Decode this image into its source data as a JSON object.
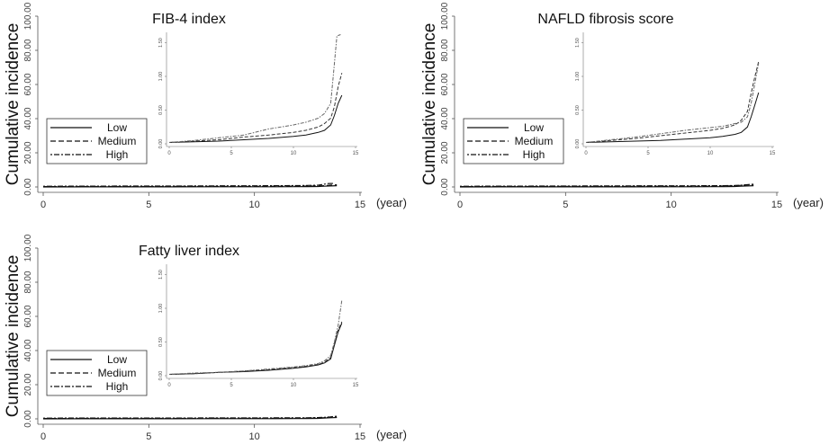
{
  "chart_data": [
    {
      "type": "line",
      "title": "FIB-4 index",
      "ylabel": "Cumulative incidence",
      "xunit": "(year)",
      "xlim": [
        0,
        15
      ],
      "ylim": [
        0,
        100
      ],
      "xticks": [
        "0",
        "5",
        "10",
        "15"
      ],
      "yticks": [
        "0.00",
        "20.00",
        "40.00",
        "60.00",
        "80.00",
        "100.00"
      ],
      "legend": [
        "Low",
        "Medium",
        "High"
      ],
      "legend_position": "lower-left",
      "series": [
        {
          "name": "Low",
          "dash": "solid",
          "x": [
            0,
            2,
            4,
            6,
            8,
            10,
            11,
            12,
            12.5,
            13,
            13.3,
            13.6,
            13.9
          ],
          "y": [
            0.02,
            0.03,
            0.04,
            0.06,
            0.08,
            0.11,
            0.13,
            0.17,
            0.2,
            0.28,
            0.42,
            0.6,
            0.72
          ]
        },
        {
          "name": "Medium",
          "dash": "dashed",
          "x": [
            0,
            2,
            4,
            6,
            8,
            10,
            11,
            12,
            12.5,
            13,
            13.3,
            13.6,
            13.9
          ],
          "y": [
            0.02,
            0.04,
            0.06,
            0.1,
            0.13,
            0.17,
            0.2,
            0.25,
            0.3,
            0.38,
            0.55,
            0.85,
            1.05
          ]
        },
        {
          "name": "High",
          "dash": "dash-dot",
          "x": [
            0,
            2,
            4,
            6,
            8,
            10,
            11,
            12,
            12.5,
            13,
            13.2,
            13.5,
            13.8
          ],
          "y": [
            0.02,
            0.05,
            0.09,
            0.13,
            0.22,
            0.28,
            0.32,
            0.38,
            0.45,
            0.6,
            1.0,
            1.6,
            1.62
          ]
        }
      ],
      "inset": {
        "xlim": [
          0,
          15
        ],
        "ylim": [
          0,
          1.6
        ],
        "xticks": [
          "0",
          "5",
          "10",
          "15"
        ],
        "yticks": [
          "0.00",
          "0.50",
          "1.00",
          "1.50"
        ]
      }
    },
    {
      "type": "line",
      "title": "NAFLD fibrosis score",
      "ylabel": "Cumulative incidence",
      "xunit": "(year)",
      "xlim": [
        0,
        15
      ],
      "ylim": [
        0,
        100
      ],
      "xticks": [
        "0",
        "5",
        "10",
        "15"
      ],
      "yticks": [
        "0.00",
        "20.00",
        "40.00",
        "60.00",
        "80.00",
        "100.00"
      ],
      "legend": [
        "Low",
        "Medium",
        "High"
      ],
      "legend_position": "lower-left",
      "series": [
        {
          "name": "Low",
          "dash": "solid",
          "x": [
            0,
            2,
            4,
            6,
            8,
            10,
            11,
            12,
            12.5,
            13,
            13.3,
            13.6,
            13.9
          ],
          "y": [
            0.02,
            0.03,
            0.04,
            0.05,
            0.07,
            0.09,
            0.11,
            0.14,
            0.17,
            0.25,
            0.4,
            0.58,
            0.76
          ]
        },
        {
          "name": "Medium",
          "dash": "dashed",
          "x": [
            0,
            2,
            4,
            6,
            8,
            10,
            11,
            12,
            12.5,
            13,
            13.3,
            13.6,
            13.9
          ],
          "y": [
            0.02,
            0.05,
            0.08,
            0.12,
            0.16,
            0.2,
            0.23,
            0.28,
            0.35,
            0.48,
            0.75,
            1.0,
            1.22
          ]
        },
        {
          "name": "High",
          "dash": "dash-dot",
          "x": [
            0,
            2,
            4,
            6,
            8,
            10,
            11,
            12,
            12.5,
            13,
            13.3,
            13.6,
            13.9
          ],
          "y": [
            0.02,
            0.06,
            0.1,
            0.15,
            0.2,
            0.24,
            0.26,
            0.3,
            0.32,
            0.4,
            0.6,
            0.9,
            1.2
          ]
        }
      ],
      "inset": {
        "xlim": [
          0,
          15
        ],
        "ylim": [
          0,
          1.6
        ],
        "xticks": [
          "0",
          "5",
          "10",
          "15"
        ],
        "yticks": [
          "0.00",
          "0.50",
          "1.00",
          "1.50"
        ]
      }
    },
    {
      "type": "line",
      "title": "Fatty liver index",
      "ylabel": "Cumulative incidence",
      "xunit": "(year)",
      "xlim": [
        0,
        15
      ],
      "ylim": [
        0,
        100
      ],
      "xticks": [
        "0",
        "5",
        "10",
        "15"
      ],
      "yticks": [
        "0.00",
        "20.00",
        "40.00",
        "60.00",
        "80.00",
        "100.00"
      ],
      "legend": [
        "Low",
        "Medium",
        "High"
      ],
      "legend_position": "lower-left",
      "series": [
        {
          "name": "Low",
          "dash": "solid",
          "x": [
            0,
            2,
            4,
            6,
            8,
            10,
            11,
            12,
            12.5,
            13,
            13.3,
            13.6,
            13.9
          ],
          "y": [
            0.02,
            0.03,
            0.05,
            0.06,
            0.08,
            0.11,
            0.13,
            0.16,
            0.19,
            0.25,
            0.45,
            0.65,
            0.78
          ]
        },
        {
          "name": "Medium",
          "dash": "dashed",
          "x": [
            0,
            2,
            4,
            6,
            8,
            10,
            11,
            12,
            12.5,
            13,
            13.3,
            13.6,
            13.9
          ],
          "y": [
            0.02,
            0.03,
            0.05,
            0.07,
            0.09,
            0.12,
            0.14,
            0.17,
            0.2,
            0.27,
            0.48,
            0.68,
            0.8
          ]
        },
        {
          "name": "High",
          "dash": "dash-dot",
          "x": [
            0,
            2,
            4,
            6,
            8,
            10,
            11,
            12,
            12.5,
            13,
            13.3,
            13.6,
            13.9
          ],
          "y": [
            0.02,
            0.04,
            0.05,
            0.07,
            0.1,
            0.13,
            0.15,
            0.18,
            0.22,
            0.3,
            0.5,
            0.75,
            1.12
          ]
        }
      ],
      "inset": {
        "xlim": [
          0,
          15
        ],
        "ylim": [
          0,
          1.6
        ],
        "xticks": [
          "0",
          "5",
          "10",
          "15"
        ],
        "yticks": [
          "0.00",
          "0.50",
          "1.00",
          "1.50"
        ]
      }
    }
  ]
}
